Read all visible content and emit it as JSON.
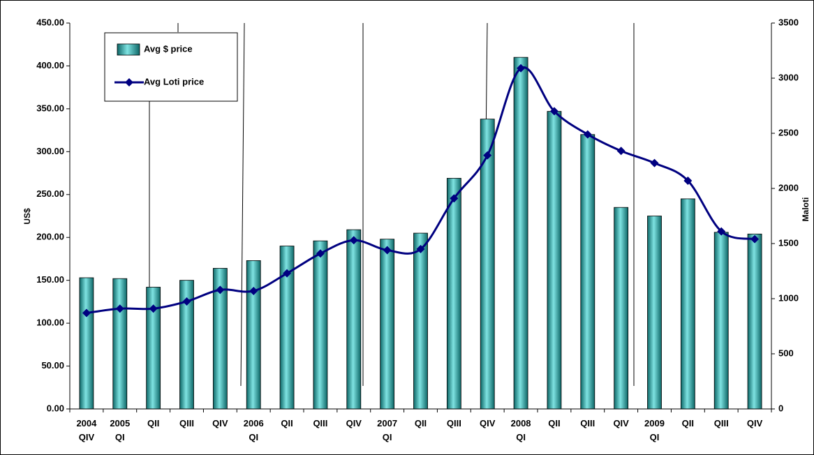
{
  "chart_data": {
    "type": "bar",
    "categories": [
      "2004 QIV",
      "2005 QI",
      "QII",
      "QIII",
      "QIV",
      "2006 QI",
      "QII",
      "QIII",
      "QIV",
      "2007 QI",
      "QII",
      "QIII",
      "QIV",
      "2008 QI",
      "QII",
      "QIII",
      "QIV",
      "2009 QI",
      "QII",
      "QIII",
      "QIV"
    ],
    "y_label": "US$",
    "y2_label": "Maloti",
    "ylim": [
      0,
      450
    ],
    "yticks": [
      {
        "value": 0,
        "label": "0.00"
      },
      {
        "value": 50,
        "label": "50.00"
      },
      {
        "value": 100,
        "label": "100.00"
      },
      {
        "value": 150,
        "label": "150.00"
      },
      {
        "value": 200,
        "label": "200.00"
      },
      {
        "value": 250,
        "label": "250.00"
      },
      {
        "value": 300,
        "label": "300.00"
      },
      {
        "value": 350,
        "label": "350.00"
      },
      {
        "value": 400,
        "label": "400.00"
      },
      {
        "value": 450,
        "label": "450.00"
      }
    ],
    "y2lim": [
      0,
      3500
    ],
    "y2ticks": [
      0,
      500,
      1000,
      1500,
      2000,
      2500,
      3000,
      3500
    ],
    "legend": "top-left",
    "series": [
      {
        "name": "Avg $ price",
        "type": "bar",
        "color": "#2aa9a8",
        "values": [
          153,
          152,
          142,
          150,
          164,
          173,
          190,
          196,
          209,
          198,
          205,
          269,
          338,
          410,
          347,
          320,
          235,
          225,
          245,
          206,
          204
        ]
      },
      {
        "name": "Avg Loti price",
        "type": "line",
        "axis": "y2",
        "color": "#000080",
        "values": [
          870,
          910,
          910,
          975,
          1080,
          1070,
          1230,
          1410,
          1530,
          1440,
          1450,
          1910,
          2300,
          3090,
          2700,
          2490,
          2340,
          2230,
          2070,
          1610,
          1540
        ]
      }
    ]
  }
}
